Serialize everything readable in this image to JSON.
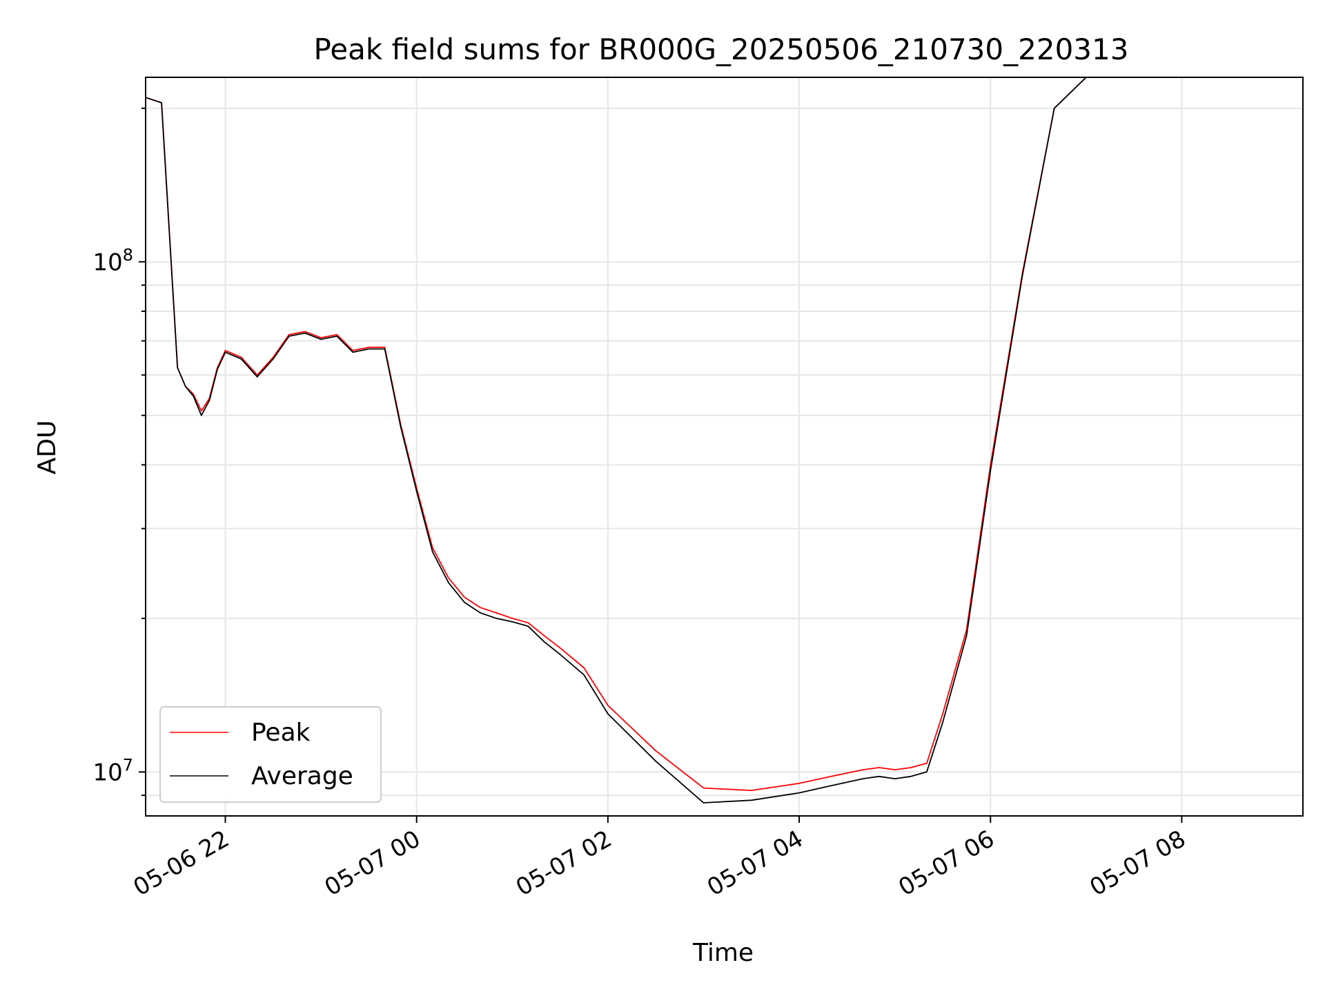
{
  "chart_data": {
    "type": "line",
    "title": "Peak field sums for BR000G_20250506_210730_220313",
    "xlabel": "Time",
    "ylabel": "ADU",
    "y_scale": "log",
    "ylim": [
      8200000,
      230000000
    ],
    "xlim": [
      "2025-05-06 21:10",
      "2025-05-07 09:16"
    ],
    "grid": true,
    "legend_position": "lower-left",
    "x_ticks": [
      {
        "value": "2025-05-06 22:00",
        "label": "05-06 22"
      },
      {
        "value": "2025-05-07 00:00",
        "label": "05-07 00"
      },
      {
        "value": "2025-05-07 02:00",
        "label": "05-07 02"
      },
      {
        "value": "2025-05-07 04:00",
        "label": "05-07 04"
      },
      {
        "value": "2025-05-07 06:00",
        "label": "05-07 06"
      },
      {
        "value": "2025-05-07 08:00",
        "label": "05-07 08"
      }
    ],
    "y_ticks": [
      {
        "value": 10000000,
        "base": "10",
        "exp": "7"
      },
      {
        "value": 100000000,
        "base": "10",
        "exp": "8"
      }
    ],
    "series": [
      {
        "name": "Peak",
        "color": "#ff0000",
        "x": [
          "2025-05-06 21:10",
          "2025-05-06 21:20",
          "2025-05-06 21:30",
          "2025-05-06 21:35",
          "2025-05-06 21:40",
          "2025-05-06 21:45",
          "2025-05-06 21:50",
          "2025-05-06 21:55",
          "2025-05-06 22:00",
          "2025-05-06 22:10",
          "2025-05-06 22:20",
          "2025-05-06 22:30",
          "2025-05-06 22:40",
          "2025-05-06 22:50",
          "2025-05-06 23:00",
          "2025-05-06 23:10",
          "2025-05-06 23:20",
          "2025-05-06 23:30",
          "2025-05-06 23:40",
          "2025-05-06 23:50",
          "2025-05-07 00:00",
          "2025-05-07 00:10",
          "2025-05-07 00:20",
          "2025-05-07 00:30",
          "2025-05-07 00:40",
          "2025-05-07 00:50",
          "2025-05-07 01:00",
          "2025-05-07 01:10",
          "2025-05-07 01:20",
          "2025-05-07 01:30",
          "2025-05-07 01:45",
          "2025-05-07 02:00",
          "2025-05-07 02:30",
          "2025-05-07 03:00",
          "2025-05-07 03:30",
          "2025-05-07 04:00",
          "2025-05-07 04:20",
          "2025-05-07 04:40",
          "2025-05-07 04:50",
          "2025-05-07 05:00",
          "2025-05-07 05:10",
          "2025-05-07 05:20",
          "2025-05-07 05:30",
          "2025-05-07 05:45",
          "2025-05-07 06:00",
          "2025-05-07 06:20",
          "2025-05-07 06:40",
          "2025-05-07 07:00",
          "2025-05-07 07:20",
          "2025-05-07 07:40",
          "2025-05-07 08:00",
          "2025-05-07 08:10",
          "2025-05-07 08:15",
          "2025-05-07 08:20",
          "2025-05-07 08:25",
          "2025-05-07 08:30",
          "2025-05-07 08:40",
          "2025-05-07 08:50",
          "2025-05-07 08:55",
          "2025-05-07 09:00"
        ],
        "y": [
          210000000,
          205000000,
          62000000,
          57000000,
          55000000,
          51000000,
          54000000,
          62000000,
          67000000,
          65000000,
          60000000,
          65000000,
          72000000,
          73000000,
          71000000,
          72000000,
          67000000,
          68000000,
          68000000,
          48000000,
          36000000,
          27500000,
          24000000,
          22000000,
          21000000,
          20500000,
          20000000,
          19600000,
          18500000,
          17500000,
          16000000,
          13500000,
          11000000,
          9300000,
          9200000,
          9500000,
          9800000,
          10100000,
          10200000,
          10100000,
          10200000,
          10400000,
          13000000,
          19000000,
          40000000,
          95000000,
          200000000,
          230000000,
          230000000,
          230000000,
          230000000,
          230000000,
          230000000,
          230000000,
          230000000,
          230000000,
          230000000,
          230000000,
          230000000,
          230000000
        ]
      },
      {
        "name": "Average",
        "color": "#000000",
        "x": [
          "2025-05-06 21:10",
          "2025-05-06 21:20",
          "2025-05-06 21:30",
          "2025-05-06 21:35",
          "2025-05-06 21:40",
          "2025-05-06 21:45",
          "2025-05-06 21:50",
          "2025-05-06 21:55",
          "2025-05-06 22:00",
          "2025-05-06 22:10",
          "2025-05-06 22:20",
          "2025-05-06 22:30",
          "2025-05-06 22:40",
          "2025-05-06 22:50",
          "2025-05-06 23:00",
          "2025-05-06 23:10",
          "2025-05-06 23:20",
          "2025-05-06 23:30",
          "2025-05-06 23:40",
          "2025-05-06 23:50",
          "2025-05-07 00:00",
          "2025-05-07 00:10",
          "2025-05-07 00:20",
          "2025-05-07 00:30",
          "2025-05-07 00:40",
          "2025-05-07 00:50",
          "2025-05-07 01:00",
          "2025-05-07 01:10",
          "2025-05-07 01:20",
          "2025-05-07 01:30",
          "2025-05-07 01:45",
          "2025-05-07 02:00",
          "2025-05-07 02:30",
          "2025-05-07 03:00",
          "2025-05-07 03:30",
          "2025-05-07 04:00",
          "2025-05-07 04:20",
          "2025-05-07 04:40",
          "2025-05-07 04:50",
          "2025-05-07 05:00",
          "2025-05-07 05:10",
          "2025-05-07 05:20",
          "2025-05-07 05:30",
          "2025-05-07 05:45",
          "2025-05-07 06:00",
          "2025-05-07 06:20",
          "2025-05-07 06:40",
          "2025-05-07 07:00",
          "2025-05-07 07:20",
          "2025-05-07 07:40",
          "2025-05-07 08:00",
          "2025-05-07 08:10",
          "2025-05-07 08:15",
          "2025-05-07 08:20",
          "2025-05-07 08:25",
          "2025-05-07 08:30",
          "2025-05-07 08:40",
          "2025-05-07 08:50",
          "2025-05-07 08:55",
          "2025-05-07 09:00"
        ],
        "y": [
          210000000,
          205000000,
          62000000,
          57000000,
          54500000,
          50000000,
          53500000,
          61500000,
          66500000,
          64500000,
          59500000,
          64500000,
          71500000,
          72500000,
          70500000,
          71500000,
          66500000,
          67500000,
          67500000,
          47500000,
          35500000,
          27000000,
          23500000,
          21500000,
          20500000,
          20000000,
          19700000,
          19300000,
          18000000,
          17000000,
          15500000,
          13000000,
          10500000,
          8700000,
          8800000,
          9100000,
          9400000,
          9700000,
          9800000,
          9700000,
          9800000,
          10000000,
          12500000,
          18500000,
          39000000,
          94000000,
          200000000,
          230000000,
          230000000,
          230000000,
          230000000,
          230000000,
          230000000,
          230000000,
          230000000,
          230000000,
          230000000,
          230000000,
          230000000,
          230000000
        ]
      }
    ]
  }
}
